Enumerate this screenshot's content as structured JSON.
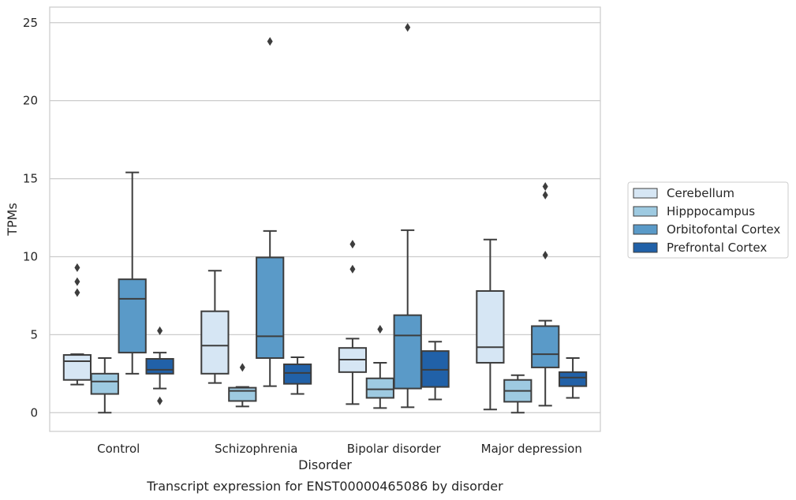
{
  "chart_data": {
    "type": "boxplot",
    "title": "",
    "xlabel": "Disorder",
    "ylabel": "TPMs",
    "caption": "Transcript expression for ENST00000465086 by disorder",
    "ylim": [
      -1.2,
      26
    ],
    "yticks": [
      0,
      5,
      10,
      15,
      20,
      25
    ],
    "grid": true,
    "legend_position": "right",
    "categories": [
      "Control",
      "Schizophrenia",
      "Bipolar disorder",
      "Major depression"
    ],
    "series": [
      {
        "name": "Cerebellum",
        "color": "#d6e6f4",
        "boxes": [
          {
            "whisker_low": 1.8,
            "q1": 2.1,
            "median": 3.3,
            "q3": 3.7,
            "whisker_high": 3.75,
            "outliers": [
              7.7,
              8.4,
              9.3
            ]
          },
          {
            "whisker_low": 1.9,
            "q1": 2.5,
            "median": 4.3,
            "q3": 6.5,
            "whisker_high": 9.1,
            "outliers": []
          },
          {
            "whisker_low": 0.55,
            "q1": 2.6,
            "median": 3.4,
            "q3": 4.15,
            "whisker_high": 4.75,
            "outliers": [
              9.2,
              10.8
            ]
          },
          {
            "whisker_low": 0.2,
            "q1": 3.2,
            "median": 4.2,
            "q3": 7.8,
            "whisker_high": 11.1,
            "outliers": []
          }
        ]
      },
      {
        "name": "Hipppocampus",
        "color": "#9ecae1",
        "boxes": [
          {
            "whisker_low": 0.0,
            "q1": 1.2,
            "median": 2.0,
            "q3": 2.5,
            "whisker_high": 3.5,
            "outliers": []
          },
          {
            "whisker_low": 0.4,
            "q1": 0.75,
            "median": 1.4,
            "q3": 1.6,
            "whisker_high": 1.65,
            "outliers": [
              2.9
            ]
          },
          {
            "whisker_low": 0.3,
            "q1": 0.95,
            "median": 1.5,
            "q3": 2.2,
            "whisker_high": 3.2,
            "outliers": [
              5.35
            ]
          },
          {
            "whisker_low": 0.0,
            "q1": 0.7,
            "median": 1.4,
            "q3": 2.1,
            "whisker_high": 2.4,
            "outliers": []
          }
        ]
      },
      {
        "name": "Orbitofontal Cortex",
        "color": "#5a9ac8",
        "boxes": [
          {
            "whisker_low": 2.5,
            "q1": 3.85,
            "median": 7.3,
            "q3": 8.55,
            "whisker_high": 15.4,
            "outliers": []
          },
          {
            "whisker_low": 1.7,
            "q1": 3.5,
            "median": 4.9,
            "q3": 9.95,
            "whisker_high": 11.65,
            "outliers": [
              23.8
            ]
          },
          {
            "whisker_low": 0.35,
            "q1": 1.55,
            "median": 4.95,
            "q3": 6.25,
            "whisker_high": 11.7,
            "outliers": [
              24.7
            ]
          },
          {
            "whisker_low": 0.45,
            "q1": 2.9,
            "median": 3.75,
            "q3": 5.55,
            "whisker_high": 5.9,
            "outliers": [
              10.1,
              13.95,
              14.5
            ]
          }
        ]
      },
      {
        "name": "Prefrontal Cortex",
        "color": "#2161a8",
        "boxes": [
          {
            "whisker_low": 1.55,
            "q1": 2.5,
            "median": 2.75,
            "q3": 3.45,
            "whisker_high": 3.85,
            "outliers": [
              0.75,
              5.25
            ]
          },
          {
            "whisker_low": 1.2,
            "q1": 1.85,
            "median": 2.55,
            "q3": 3.1,
            "whisker_high": 3.55,
            "outliers": []
          },
          {
            "whisker_low": 0.85,
            "q1": 1.65,
            "median": 2.75,
            "q3": 3.95,
            "whisker_high": 4.55,
            "outliers": []
          },
          {
            "whisker_low": 0.95,
            "q1": 1.7,
            "median": 2.25,
            "q3": 2.6,
            "whisker_high": 3.5,
            "outliers": []
          }
        ]
      }
    ]
  }
}
